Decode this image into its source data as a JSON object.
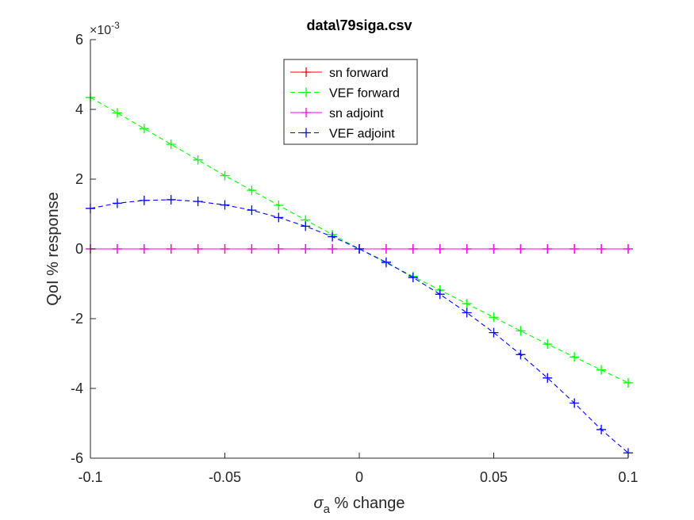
{
  "chart_data": {
    "type": "line",
    "title": "data\\79siga.csv",
    "xlabel": {
      "symbol": "σ",
      "subscript": "a",
      "text": " % change"
    },
    "ylabel": "QoI % response",
    "xlim": [
      -0.1,
      0.1
    ],
    "ylim": [
      -0.006,
      0.006
    ],
    "x_ticks": [
      -0.1,
      -0.05,
      0,
      0.05,
      0.1
    ],
    "x_tick_labels": [
      "-0.1",
      "-0.05",
      "0",
      "0.05",
      "0.1"
    ],
    "y_ticks": [
      -0.006,
      -0.004,
      -0.002,
      0,
      0.002,
      0.004,
      0.006
    ],
    "y_tick_labels": [
      "-6",
      "-4",
      "-2",
      "0",
      "2",
      "4",
      "6"
    ],
    "y_exponent_label": {
      "base": "×10",
      "exponent": "-3"
    },
    "grid": false,
    "legend_position": "top-center",
    "x": [
      -0.1,
      -0.09,
      -0.08,
      -0.07,
      -0.06,
      -0.05,
      -0.04,
      -0.03,
      -0.02,
      -0.01,
      0,
      0.01,
      0.02,
      0.03,
      0.04,
      0.05,
      0.06,
      0.07,
      0.08,
      0.09,
      0.1
    ],
    "series": [
      {
        "name": "sn forward",
        "color": "#ff0000",
        "line_style": "solid",
        "marker": "+",
        "values": [
          0,
          0,
          0,
          0,
          0,
          0,
          0,
          0,
          0,
          0,
          0,
          0,
          0,
          0,
          0,
          0,
          0,
          0,
          0,
          0,
          0
        ]
      },
      {
        "name": "VEF forward",
        "color": "#00ff00",
        "line_style": "dashed",
        "marker": "+",
        "values": [
          0.00434,
          0.0039,
          0.00345,
          0.003,
          0.00255,
          0.0021,
          0.00168,
          0.00125,
          0.00083,
          0.00041,
          0,
          -0.0004,
          -0.00079,
          -0.00118,
          -0.00157,
          -0.00196,
          -0.00235,
          -0.00273,
          -0.0031,
          -0.00347,
          -0.00384
        ]
      },
      {
        "name": "sn adjoint",
        "color": "#ff00ff",
        "line_style": "solid",
        "marker": "+",
        "values": [
          0,
          0,
          0,
          0,
          0,
          0,
          0,
          0,
          0,
          0,
          0,
          0,
          0,
          0,
          0,
          0,
          0,
          0,
          0,
          0,
          0
        ]
      },
      {
        "name": "VEF adjoint",
        "color": "#0000ff",
        "line_style": "dashed",
        "marker": "+",
        "values": [
          0.00116,
          0.00131,
          0.00139,
          0.00141,
          0.00136,
          0.00126,
          0.00111,
          0.0009,
          0.00065,
          0.00035,
          0,
          -0.00038,
          -0.00082,
          -0.0013,
          -0.00183,
          -0.0024,
          -0.00303,
          -0.0037,
          -0.00442,
          -0.00518,
          -0.00585
        ]
      }
    ]
  }
}
